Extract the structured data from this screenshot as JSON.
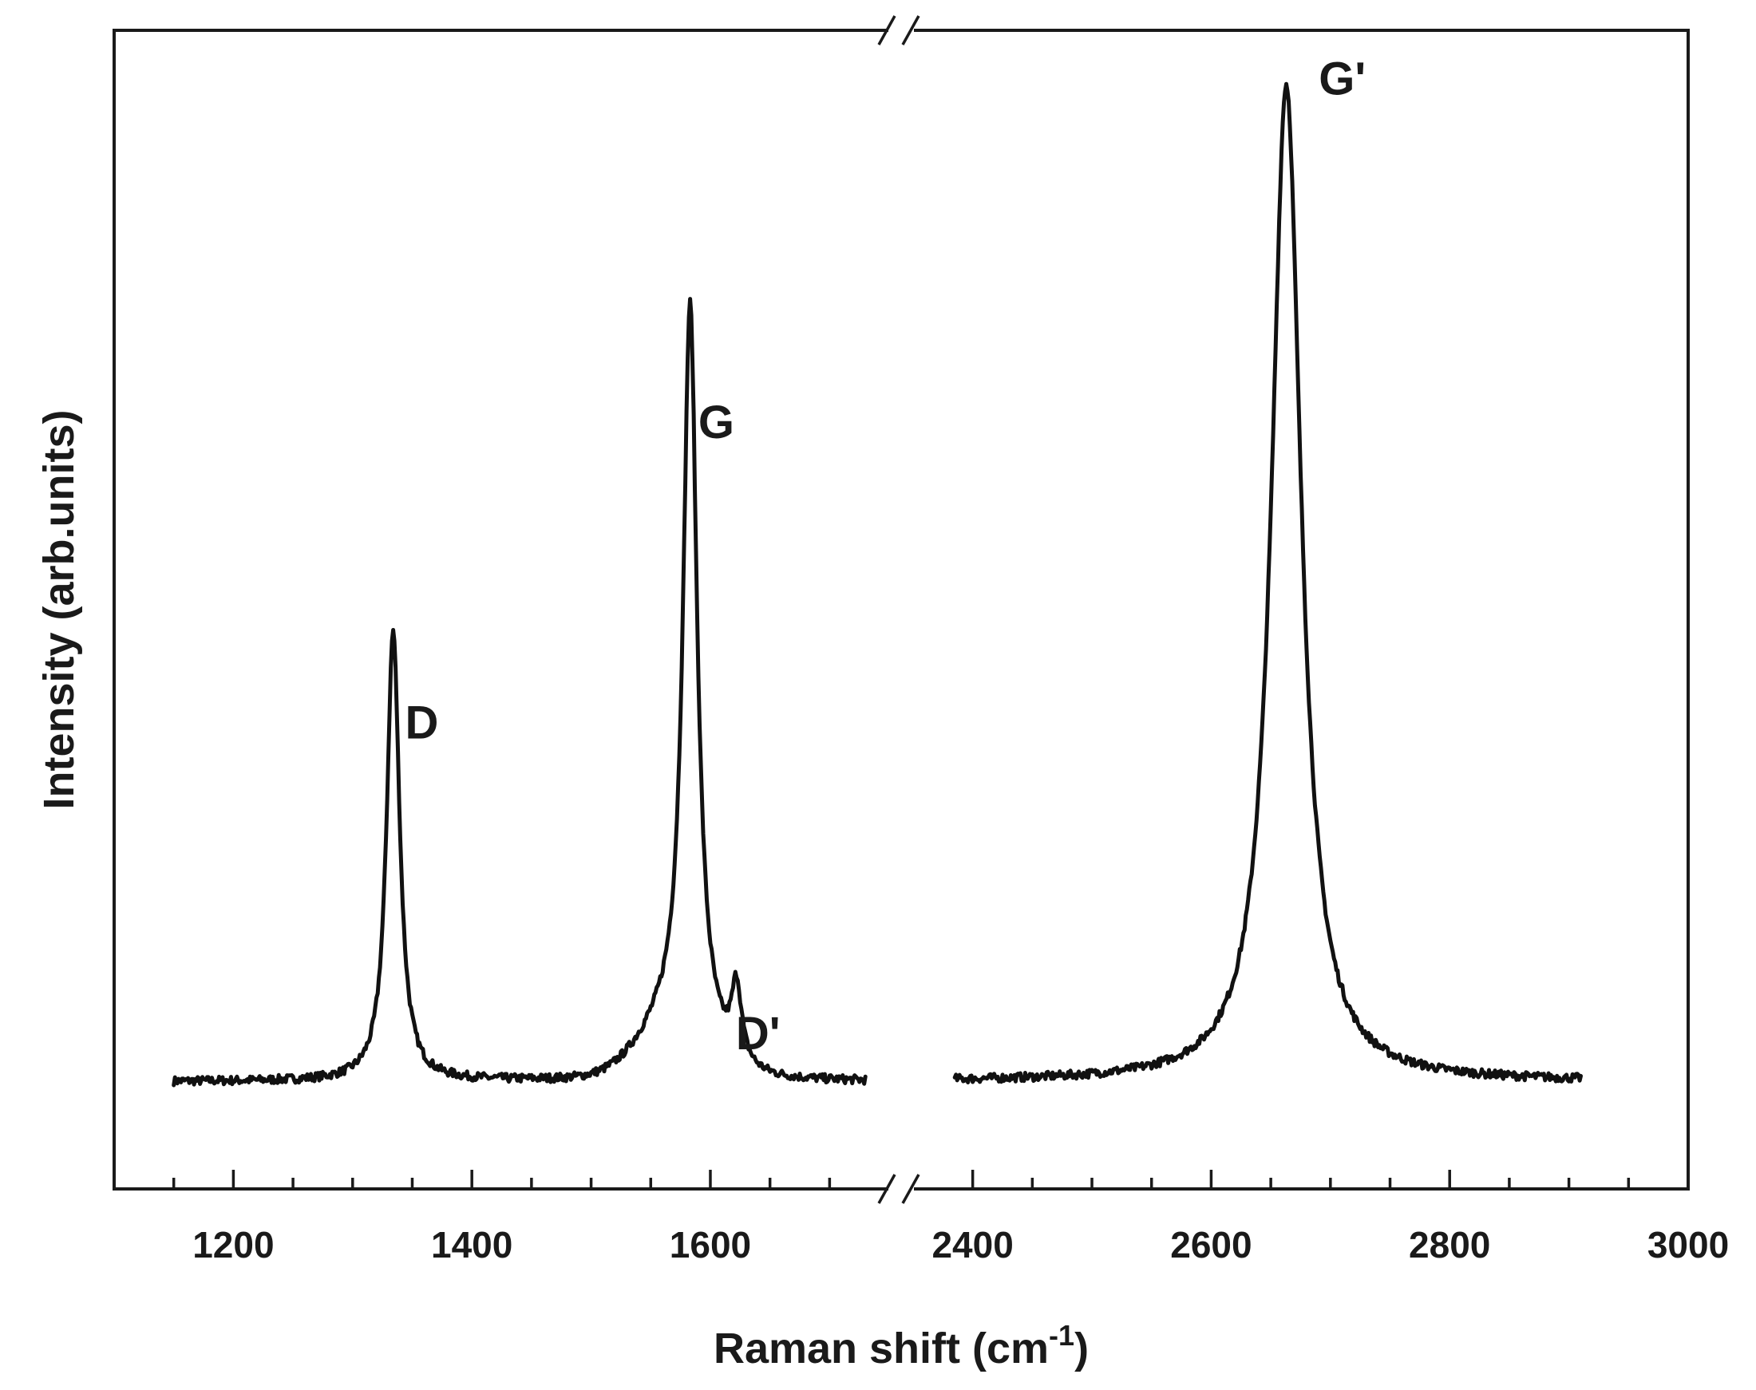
{
  "chart_data": {
    "type": "line",
    "xlabel": "Raman shift (cm",
    "xlabel_sup": "-1",
    "xlabel_close": ")",
    "ylabel": "Intensity (arb.units)",
    "x_axis_break": true,
    "segments": [
      {
        "xlim": [
          1100,
          1760
        ],
        "ticks": [
          1200,
          1400,
          1600
        ]
      },
      {
        "xlim": [
          2340,
          3000
        ],
        "ticks": [
          2400,
          2600,
          2800,
          3000
        ]
      }
    ],
    "ylim": [
      0,
      1.08
    ],
    "tick_labels": [
      "1200",
      "1400",
      "1600",
      "2400",
      "2600",
      "2800",
      "3000"
    ],
    "peak_labels": [
      {
        "text": "D",
        "x": 1358,
        "y": 0.42
      },
      {
        "text": "G",
        "x": 1605,
        "y": 0.7
      },
      {
        "text": "D'",
        "x": 1640,
        "y": 0.13
      },
      {
        "text": "G'",
        "x": 2710,
        "y": 1.02
      }
    ],
    "series": [
      {
        "baseline": 0.1,
        "x_range": [
          1150,
          1730
        ],
        "peaks": [
          {
            "center": 1334,
            "height": 0.42,
            "width": 13
          },
          {
            "center": 1583,
            "height": 0.68,
            "width": 14
          },
          {
            "center": 1622,
            "height": 0.07,
            "width": 10
          }
        ],
        "shoulder": {
          "center": 1570,
          "height": 0.05,
          "width": 40
        }
      },
      {
        "baseline": 0.1,
        "x_range": [
          2385,
          2910
        ],
        "peaks": [
          {
            "center": 2663,
            "height": 0.93,
            "width": 30
          }
        ]
      }
    ]
  }
}
